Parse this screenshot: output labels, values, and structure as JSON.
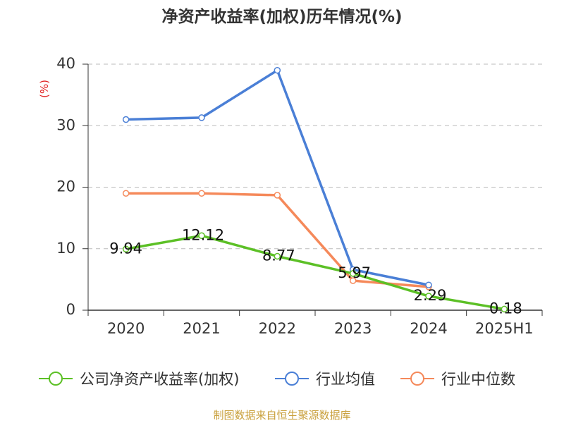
{
  "chart_data": {
    "type": "line",
    "title": "净资产收益率(加权)历年情况(%)",
    "ylabel": "(%)",
    "xlabel": "",
    "categories": [
      "2020",
      "2021",
      "2022",
      "2023",
      "2024",
      "2025H1"
    ],
    "ylim": [
      0,
      40
    ],
    "yticks": [
      0,
      10,
      20,
      30,
      40
    ],
    "grid": true,
    "legend_position": "bottom",
    "series": [
      {
        "name": "公司净资产收益率(加权)",
        "color": "#5cc026",
        "values": [
          9.94,
          12.12,
          8.77,
          5.97,
          2.29,
          0.18
        ],
        "data_labels": true
      },
      {
        "name": "行业均值",
        "color": "#4a7fd6",
        "values": [
          31.0,
          31.3,
          39.0,
          6.6,
          4.1,
          null
        ],
        "data_labels": false
      },
      {
        "name": "行业中位数",
        "color": "#f5895a",
        "values": [
          19.0,
          19.0,
          18.7,
          4.8,
          3.8,
          null
        ],
        "data_labels": false
      }
    ]
  },
  "colors": {
    "ylabel": "#e02020",
    "footer": "#c9a03c",
    "axis": "#333333",
    "grid": "#bbbbbb"
  },
  "footer": "制图数据来自恒生聚源数据库"
}
